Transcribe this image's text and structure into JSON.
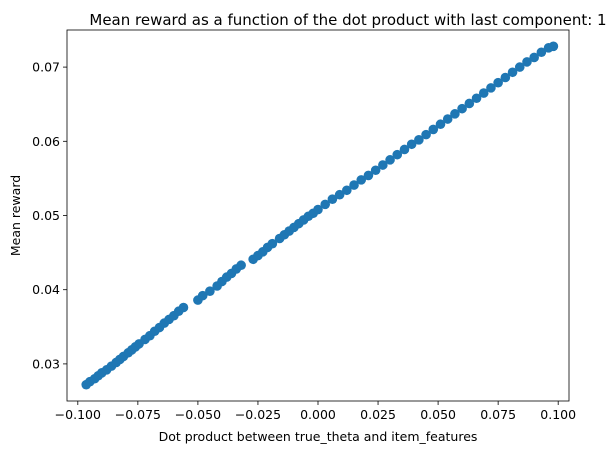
{
  "chart_data": {
    "type": "scatter",
    "title": "Mean reward as a function of the dot product with last component: 1",
    "xlabel": "Dot product between true_theta and item_features",
    "ylabel": "Mean reward",
    "xlim": [
      -0.1045,
      0.1045
    ],
    "ylim": [
      0.025,
      0.075
    ],
    "x_ticks": [
      -0.1,
      -0.075,
      -0.05,
      -0.025,
      0.0,
      0.025,
      0.05,
      0.075,
      0.1
    ],
    "x_tick_labels": [
      "−0.100",
      "−0.075",
      "−0.050",
      "−0.025",
      "0.000",
      "0.025",
      "0.050",
      "0.075",
      "0.100"
    ],
    "y_ticks": [
      0.03,
      0.04,
      0.05,
      0.06,
      0.07
    ],
    "y_tick_labels": [
      "0.03",
      "0.04",
      "0.05",
      "0.06",
      "0.07"
    ],
    "grid": false,
    "legend": "none",
    "marker_color": "#1f77b4",
    "series": [
      {
        "points": [
          [
            -0.0965,
            0.0272
          ],
          [
            -0.095,
            0.0276
          ],
          [
            -0.093,
            0.028
          ],
          [
            -0.0915,
            0.0284
          ],
          [
            -0.09,
            0.0288
          ],
          [
            -0.088,
            0.0292
          ],
          [
            -0.086,
            0.0297
          ],
          [
            -0.084,
            0.0302
          ],
          [
            -0.0825,
            0.0306
          ],
          [
            -0.081,
            0.031
          ],
          [
            -0.079,
            0.0315
          ],
          [
            -0.0775,
            0.0319
          ],
          [
            -0.076,
            0.0323
          ],
          [
            -0.0745,
            0.0327
          ],
          [
            -0.072,
            0.0333
          ],
          [
            -0.07,
            0.0338
          ],
          [
            -0.068,
            0.0344
          ],
          [
            -0.066,
            0.0349
          ],
          [
            -0.064,
            0.0355
          ],
          [
            -0.062,
            0.036
          ],
          [
            -0.06,
            0.0365
          ],
          [
            -0.058,
            0.0371
          ],
          [
            -0.056,
            0.0376
          ],
          [
            -0.05,
            0.0386
          ],
          [
            -0.048,
            0.0392
          ],
          [
            -0.045,
            0.0398
          ],
          [
            -0.042,
            0.0405
          ],
          [
            -0.04,
            0.0411
          ],
          [
            -0.038,
            0.0417
          ],
          [
            -0.036,
            0.0422
          ],
          [
            -0.034,
            0.0428
          ],
          [
            -0.032,
            0.0433
          ],
          [
            -0.027,
            0.0441
          ],
          [
            -0.025,
            0.0446
          ],
          [
            -0.023,
            0.0451
          ],
          [
            -0.021,
            0.0457
          ],
          [
            -0.019,
            0.0462
          ],
          [
            -0.016,
            0.0469
          ],
          [
            -0.014,
            0.0474
          ],
          [
            -0.012,
            0.0479
          ],
          [
            -0.01,
            0.0484
          ],
          [
            -0.008,
            0.0489
          ],
          [
            -0.006,
            0.0494
          ],
          [
            -0.004,
            0.0499
          ],
          [
            -0.002,
            0.0503
          ],
          [
            0.0,
            0.0508
          ],
          [
            0.003,
            0.0515
          ],
          [
            0.006,
            0.0522
          ],
          [
            0.009,
            0.0528
          ],
          [
            0.012,
            0.0534
          ],
          [
            0.015,
            0.0541
          ],
          [
            0.018,
            0.0548
          ],
          [
            0.021,
            0.0554
          ],
          [
            0.024,
            0.0561
          ],
          [
            0.027,
            0.0568
          ],
          [
            0.03,
            0.0575
          ],
          [
            0.033,
            0.0582
          ],
          [
            0.036,
            0.0589
          ],
          [
            0.039,
            0.0596
          ],
          [
            0.042,
            0.0602
          ],
          [
            0.045,
            0.0609
          ],
          [
            0.048,
            0.0616
          ],
          [
            0.051,
            0.0623
          ],
          [
            0.054,
            0.063
          ],
          [
            0.057,
            0.0637
          ],
          [
            0.06,
            0.0644
          ],
          [
            0.063,
            0.0651
          ],
          [
            0.066,
            0.0658
          ],
          [
            0.069,
            0.0665
          ],
          [
            0.072,
            0.0672
          ],
          [
            0.075,
            0.0679
          ],
          [
            0.078,
            0.0686
          ],
          [
            0.081,
            0.0693
          ],
          [
            0.084,
            0.07
          ],
          [
            0.087,
            0.0707
          ],
          [
            0.09,
            0.0713
          ],
          [
            0.093,
            0.072
          ],
          [
            0.096,
            0.0726
          ],
          [
            0.098,
            0.0728
          ]
        ]
      }
    ]
  }
}
